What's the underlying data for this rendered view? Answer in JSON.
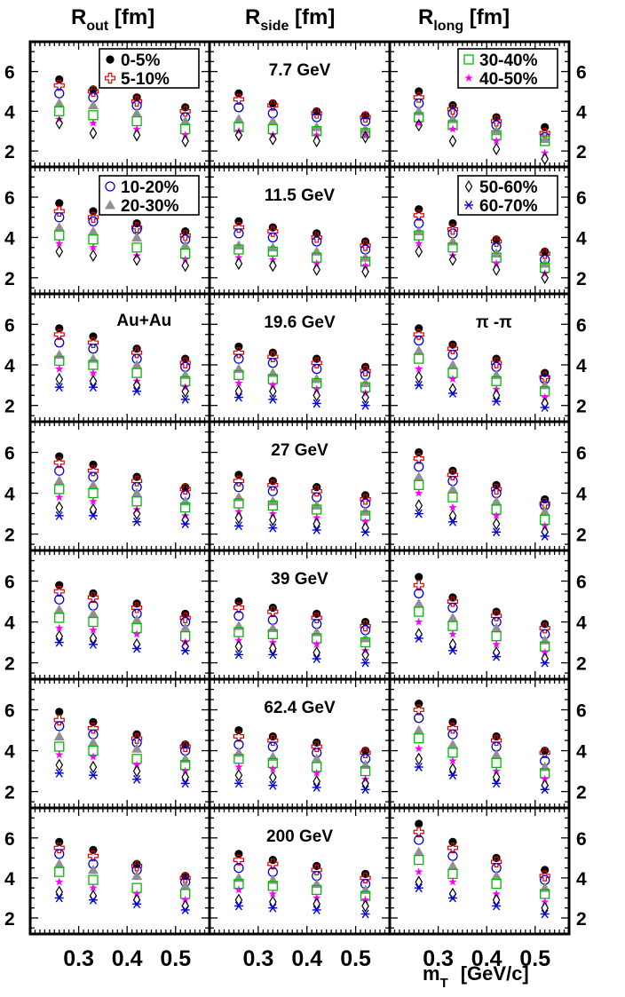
{
  "headers": [
    {
      "main": "R",
      "sub": "out",
      "unit": " [fm]"
    },
    {
      "main": "R",
      "sub": "side",
      "unit": " [fm]"
    },
    {
      "main": "R",
      "sub": "long",
      "unit": " [fm]"
    }
  ],
  "x_axis": {
    "title_main": "m",
    "title_sub": "T",
    "title_unit": "[GeV/c]",
    "ticks": [
      "0.3",
      "0.4",
      "0.5"
    ]
  },
  "y_axis": {
    "ticks": [
      "2",
      "4",
      "6"
    ]
  },
  "energies": [
    "7.7 GeV",
    "11.5 GeV",
    "19.6 GeV",
    "27 GeV",
    "39 GeV",
    "62.4 GeV",
    "200 GeV"
  ],
  "extra_labels": {
    "system": "Au+Au",
    "pair": "π  -π"
  },
  "legend": {
    "row0_left": [
      "0-5%",
      "5-10%"
    ],
    "row0_right": [
      "30-40%",
      "40-50%"
    ],
    "row1_left": [
      "10-20%",
      "20-30%"
    ],
    "row1_right": [
      "50-60%",
      "60-70%"
    ]
  },
  "chart_data": {
    "type": "scatter",
    "layout": "7 rows (collision energy) x 3 columns (radius)",
    "columns": [
      "R_out [fm]",
      "R_side [fm]",
      "R_long [fm]"
    ],
    "rows": [
      "7.7 GeV",
      "11.5 GeV",
      "19.6 GeV",
      "27 GeV",
      "39 GeV",
      "62.4 GeV",
      "200 GeV"
    ],
    "x": [
      0.26,
      0.33,
      0.42,
      0.52
    ],
    "xlim": [
      0.2,
      0.57
    ],
    "ylim": [
      1.2,
      7.5
    ],
    "xticks": [
      0.3,
      0.4,
      0.5
    ],
    "yticks": [
      2,
      4,
      6
    ],
    "centralities": [
      {
        "name": "0-5%",
        "marker": "filled-circle",
        "color": "#000000"
      },
      {
        "name": "5-10%",
        "marker": "open-cross",
        "color": "#dd0000"
      },
      {
        "name": "10-20%",
        "marker": "open-circle",
        "color": "#0000dd"
      },
      {
        "name": "20-30%",
        "marker": "filled-triangle",
        "color": "#909090"
      },
      {
        "name": "30-40%",
        "marker": "open-square",
        "color": "#00bb00"
      },
      {
        "name": "40-50%",
        "marker": "filled-star",
        "color": "#ff00ff"
      },
      {
        "name": "50-60%",
        "marker": "open-diamond",
        "color": "#000000"
      },
      {
        "name": "60-70%",
        "marker": "asterisk",
        "color": "#0000dd"
      }
    ],
    "values": {
      "R_out": [
        [
          [
            5.6,
            5.1,
            4.7,
            4.2
          ],
          [
            5.3,
            5.0,
            4.5,
            4.0
          ],
          [
            4.9,
            4.7,
            4.3,
            3.7
          ],
          [
            4.4,
            4.3,
            3.9,
            3.5
          ],
          [
            4.0,
            3.8,
            3.5,
            3.1
          ],
          [
            3.6,
            3.4,
            3.1,
            2.8
          ],
          [
            3.4,
            2.9,
            2.8,
            2.5
          ],
          null
        ],
        [
          [
            5.7,
            5.3,
            4.7,
            4.3
          ],
          [
            5.3,
            5.0,
            4.5,
            4.1
          ],
          [
            5.0,
            4.8,
            4.4,
            3.9
          ],
          [
            4.5,
            4.3,
            4.0,
            3.6
          ],
          [
            4.1,
            3.9,
            3.5,
            3.2
          ],
          [
            3.7,
            3.5,
            3.1,
            2.9
          ],
          [
            3.3,
            3.1,
            2.9,
            2.6
          ],
          null
        ],
        [
          [
            5.8,
            5.4,
            4.8,
            4.3
          ],
          [
            5.5,
            5.1,
            4.6,
            4.1
          ],
          [
            5.1,
            4.8,
            4.3,
            3.9
          ],
          [
            4.5,
            4.3,
            4.0,
            3.5
          ],
          [
            4.2,
            4.0,
            3.6,
            3.2
          ],
          [
            3.8,
            3.6,
            3.2,
            2.9
          ],
          [
            3.3,
            3.2,
            3.0,
            2.7
          ],
          [
            2.9,
            2.9,
            2.7,
            2.3
          ]
        ],
        [
          [
            5.8,
            5.4,
            4.8,
            4.3
          ],
          [
            5.5,
            5.1,
            4.6,
            4.2
          ],
          [
            5.1,
            4.8,
            4.3,
            3.9
          ],
          [
            4.6,
            4.4,
            4.0,
            3.6
          ],
          [
            4.2,
            4.0,
            3.6,
            3.3
          ],
          [
            3.8,
            3.6,
            3.2,
            2.9
          ],
          [
            3.3,
            3.2,
            3.0,
            2.7
          ],
          [
            2.9,
            2.9,
            2.6,
            2.5
          ]
        ],
        [
          [
            5.8,
            5.4,
            4.9,
            4.4
          ],
          [
            5.5,
            5.2,
            4.7,
            4.2
          ],
          [
            5.1,
            4.8,
            4.4,
            4.0
          ],
          [
            4.6,
            4.4,
            4.1,
            3.7
          ],
          [
            4.2,
            4.0,
            3.7,
            3.3
          ],
          [
            3.7,
            3.6,
            3.4,
            3.0
          ],
          [
            3.3,
            3.2,
            2.9,
            2.8
          ],
          [
            3.0,
            2.9,
            2.7,
            2.6
          ]
        ],
        [
          [
            5.9,
            5.4,
            4.8,
            4.3
          ],
          [
            5.5,
            5.1,
            4.6,
            4.2
          ],
          [
            5.2,
            4.8,
            4.4,
            4.0
          ],
          [
            4.7,
            4.4,
            4.1,
            3.6
          ],
          [
            4.2,
            4.0,
            3.6,
            3.3
          ],
          [
            3.8,
            3.7,
            3.3,
            3.0
          ],
          [
            3.3,
            3.2,
            3.0,
            2.7
          ],
          [
            2.9,
            2.8,
            2.6,
            2.4
          ]
        ],
        [
          [
            5.8,
            5.4,
            4.7,
            4.1
          ],
          [
            5.5,
            5.1,
            4.6,
            4.0
          ],
          [
            5.2,
            4.7,
            4.4,
            3.8
          ],
          [
            4.7,
            4.4,
            4.1,
            3.6
          ],
          [
            4.3,
            3.9,
            3.5,
            3.2
          ],
          [
            3.8,
            3.5,
            3.2,
            2.9
          ],
          [
            3.3,
            3.1,
            2.9,
            2.6
          ],
          [
            3.0,
            2.9,
            2.7,
            2.4
          ]
        ]
      ],
      "R_side": [
        [
          [
            4.9,
            4.4,
            4.0,
            3.8
          ],
          [
            4.6,
            4.3,
            3.9,
            3.7
          ],
          [
            4.2,
            3.9,
            3.7,
            3.5
          ],
          [
            3.6,
            3.5,
            3.2,
            3.1
          ],
          [
            3.2,
            3.1,
            3.0,
            2.9
          ],
          [
            3.0,
            2.8,
            2.8,
            2.8
          ],
          [
            2.8,
            2.6,
            2.5,
            2.7
          ],
          null
        ],
        [
          [
            4.8,
            4.5,
            4.2,
            3.8
          ],
          [
            4.5,
            4.3,
            4.0,
            3.6
          ],
          [
            4.2,
            4.0,
            3.8,
            3.4
          ],
          [
            3.6,
            3.5,
            3.3,
            3.0
          ],
          [
            3.4,
            3.3,
            3.0,
            2.8
          ],
          [
            3.0,
            2.9,
            2.7,
            2.6
          ],
          [
            2.7,
            2.6,
            2.4,
            2.3
          ],
          null
        ],
        [
          [
            4.9,
            4.6,
            4.3,
            3.9
          ],
          [
            4.6,
            4.4,
            4.1,
            3.7
          ],
          [
            4.3,
            4.1,
            3.8,
            3.5
          ],
          [
            3.8,
            3.6,
            3.3,
            3.1
          ],
          [
            3.5,
            3.3,
            3.1,
            2.9
          ],
          [
            3.1,
            3.0,
            2.8,
            2.6
          ],
          [
            2.7,
            2.7,
            2.5,
            2.4
          ],
          [
            2.4,
            2.3,
            2.1,
            2.0
          ]
        ],
        [
          [
            4.9,
            4.6,
            4.3,
            3.9
          ],
          [
            4.6,
            4.4,
            4.1,
            3.7
          ],
          [
            4.3,
            4.1,
            3.8,
            3.5
          ],
          [
            3.8,
            3.6,
            3.4,
            3.1
          ],
          [
            3.5,
            3.4,
            3.2,
            2.9
          ],
          [
            3.1,
            3.0,
            2.8,
            2.6
          ],
          [
            2.8,
            2.7,
            2.5,
            2.3
          ],
          [
            2.4,
            2.3,
            2.2,
            2.1
          ]
        ],
        [
          [
            5.0,
            4.7,
            4.4,
            4.0
          ],
          [
            4.7,
            4.5,
            4.2,
            3.8
          ],
          [
            4.3,
            4.1,
            3.9,
            3.6
          ],
          [
            3.8,
            3.7,
            3.5,
            3.2
          ],
          [
            3.5,
            3.4,
            3.2,
            3.0
          ],
          [
            3.1,
            3.0,
            2.9,
            2.6
          ],
          [
            2.8,
            2.7,
            2.5,
            2.4
          ],
          [
            2.4,
            2.4,
            2.2,
            2.0
          ]
        ],
        [
          [
            5.0,
            4.7,
            4.4,
            4.0
          ],
          [
            4.7,
            4.5,
            4.2,
            3.9
          ],
          [
            4.3,
            4.2,
            3.9,
            3.6
          ],
          [
            3.9,
            3.7,
            3.6,
            3.3
          ],
          [
            3.6,
            3.4,
            3.2,
            3.0
          ],
          [
            3.2,
            3.1,
            2.9,
            2.6
          ],
          [
            2.8,
            2.7,
            2.5,
            2.4
          ],
          [
            2.4,
            2.3,
            2.2,
            2.1
          ]
        ],
        [
          [
            5.2,
            4.9,
            4.6,
            4.2
          ],
          [
            4.9,
            4.7,
            4.4,
            4.0
          ],
          [
            4.5,
            4.3,
            4.1,
            3.7
          ],
          [
            4.0,
            3.9,
            3.7,
            3.4
          ],
          [
            3.7,
            3.6,
            3.4,
            3.1
          ],
          [
            3.4,
            3.2,
            3.0,
            2.9
          ],
          [
            2.9,
            2.8,
            2.7,
            2.6
          ],
          [
            2.6,
            2.5,
            2.4,
            2.2
          ]
        ]
      ],
      "R_long": [
        [
          [
            5.0,
            4.3,
            3.7,
            3.2
          ],
          [
            4.7,
            4.1,
            3.5,
            2.9
          ],
          [
            4.4,
            3.9,
            3.3,
            2.7
          ],
          [
            4.0,
            3.6,
            3.0,
            2.6
          ],
          [
            3.7,
            3.3,
            2.8,
            2.5
          ],
          [
            3.4,
            3.1,
            2.5,
            1.9
          ],
          [
            3.3,
            2.5,
            2.1,
            1.6
          ],
          null
        ],
        [
          [
            5.4,
            4.7,
            3.9,
            3.3
          ],
          [
            5.1,
            4.4,
            3.8,
            3.2
          ],
          [
            4.7,
            4.2,
            3.5,
            2.9
          ],
          [
            4.3,
            3.8,
            3.2,
            2.7
          ],
          [
            4.1,
            3.5,
            3.0,
            2.5
          ],
          [
            3.7,
            3.1,
            2.7,
            2.2
          ],
          [
            3.3,
            2.9,
            2.4,
            2.0
          ],
          null
        ],
        [
          [
            5.8,
            5.0,
            4.3,
            3.6
          ],
          [
            5.5,
            4.8,
            4.1,
            3.4
          ],
          [
            5.2,
            4.5,
            3.9,
            3.3
          ],
          [
            4.7,
            4.0,
            3.5,
            3.0
          ],
          [
            4.3,
            3.6,
            3.2,
            2.7
          ],
          [
            3.8,
            3.3,
            2.8,
            2.4
          ],
          [
            3.4,
            2.8,
            2.5,
            2.1
          ],
          [
            3.0,
            2.6,
            2.2,
            1.9
          ]
        ],
        [
          [
            6.0,
            5.1,
            4.4,
            3.7
          ],
          [
            5.7,
            4.9,
            4.2,
            3.5
          ],
          [
            5.3,
            4.6,
            4.0,
            3.4
          ],
          [
            4.8,
            4.2,
            3.6,
            3.1
          ],
          [
            4.4,
            3.8,
            3.2,
            2.7
          ],
          [
            4.0,
            3.3,
            2.9,
            2.4
          ],
          [
            3.4,
            2.9,
            2.5,
            2.1
          ],
          [
            3.0,
            2.6,
            2.1,
            1.9
          ]
        ],
        [
          [
            6.2,
            5.2,
            4.5,
            3.9
          ],
          [
            5.8,
            5.0,
            4.3,
            3.7
          ],
          [
            5.4,
            4.7,
            4.0,
            3.4
          ],
          [
            4.9,
            4.2,
            3.7,
            3.1
          ],
          [
            4.5,
            3.8,
            3.3,
            2.8
          ],
          [
            4.0,
            3.4,
            2.9,
            2.5
          ],
          [
            3.4,
            2.9,
            2.5,
            2.2
          ],
          [
            3.2,
            2.6,
            2.3,
            2.0
          ]
        ],
        [
          [
            6.3,
            5.4,
            4.7,
            4.0
          ],
          [
            6.0,
            5.1,
            4.5,
            3.9
          ],
          [
            5.6,
            4.8,
            4.2,
            3.5
          ],
          [
            5.0,
            4.3,
            3.8,
            3.2
          ],
          [
            4.6,
            3.9,
            3.4,
            2.9
          ],
          [
            4.1,
            3.5,
            3.0,
            2.6
          ],
          [
            3.6,
            3.1,
            2.7,
            2.3
          ],
          [
            3.2,
            2.8,
            2.4,
            2.1
          ]
        ],
        [
          [
            6.7,
            5.8,
            5.0,
            4.4
          ],
          [
            6.3,
            5.5,
            4.8,
            4.1
          ],
          [
            5.9,
            5.1,
            4.5,
            3.9
          ],
          [
            5.3,
            4.6,
            4.1,
            3.5
          ],
          [
            4.9,
            4.2,
            3.7,
            3.2
          ],
          [
            4.3,
            3.8,
            3.2,
            2.8
          ],
          [
            3.8,
            3.2,
            2.9,
            2.5
          ],
          [
            3.5,
            3.0,
            2.6,
            2.2
          ]
        ]
      ]
    }
  }
}
